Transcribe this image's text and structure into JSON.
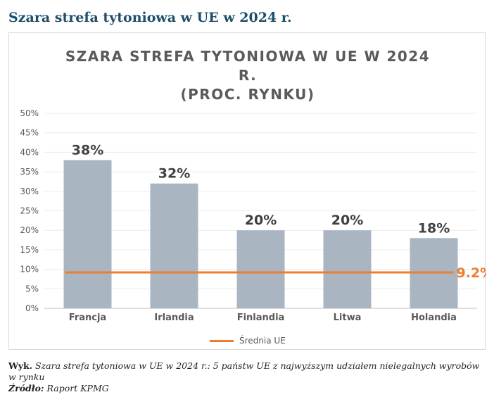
{
  "heading": "Szara strefa tytoniowa w UE w 2024 r.",
  "chart_data": {
    "type": "bar",
    "title_lines": [
      "SZARA STREFA TYTONIOWA W UE W 2024",
      "R.",
      "(PROC. RYNKU)"
    ],
    "categories": [
      "Francja",
      "Irlandia",
      "Finlandia",
      "Litwa",
      "Holandia"
    ],
    "values": [
      38,
      32,
      20,
      20,
      18
    ],
    "data_labels": [
      "38%",
      "32%",
      "20%",
      "20%",
      "18%"
    ],
    "bar_color": "#a9b5c1",
    "yticks": [
      "0%",
      "5%",
      "10%",
      "15%",
      "20%",
      "25%",
      "30%",
      "35%",
      "40%",
      "45%",
      "50%"
    ],
    "ylim": [
      0,
      50
    ],
    "average": {
      "name": "Średnia UE",
      "value": 9.2,
      "label": "9.2%",
      "color": "#ed7d31"
    },
    "legend_position": "bottom",
    "grid": true
  },
  "caption": {
    "label": "Wyk.",
    "text": "Szara strefa tytoniowa w UE w 2024 r.: 5 państw UE z najwyższym udziałem nielegalnych wyrobów w rynku",
    "source_label": "Źródło:",
    "source_text": "Raport KPMG"
  }
}
